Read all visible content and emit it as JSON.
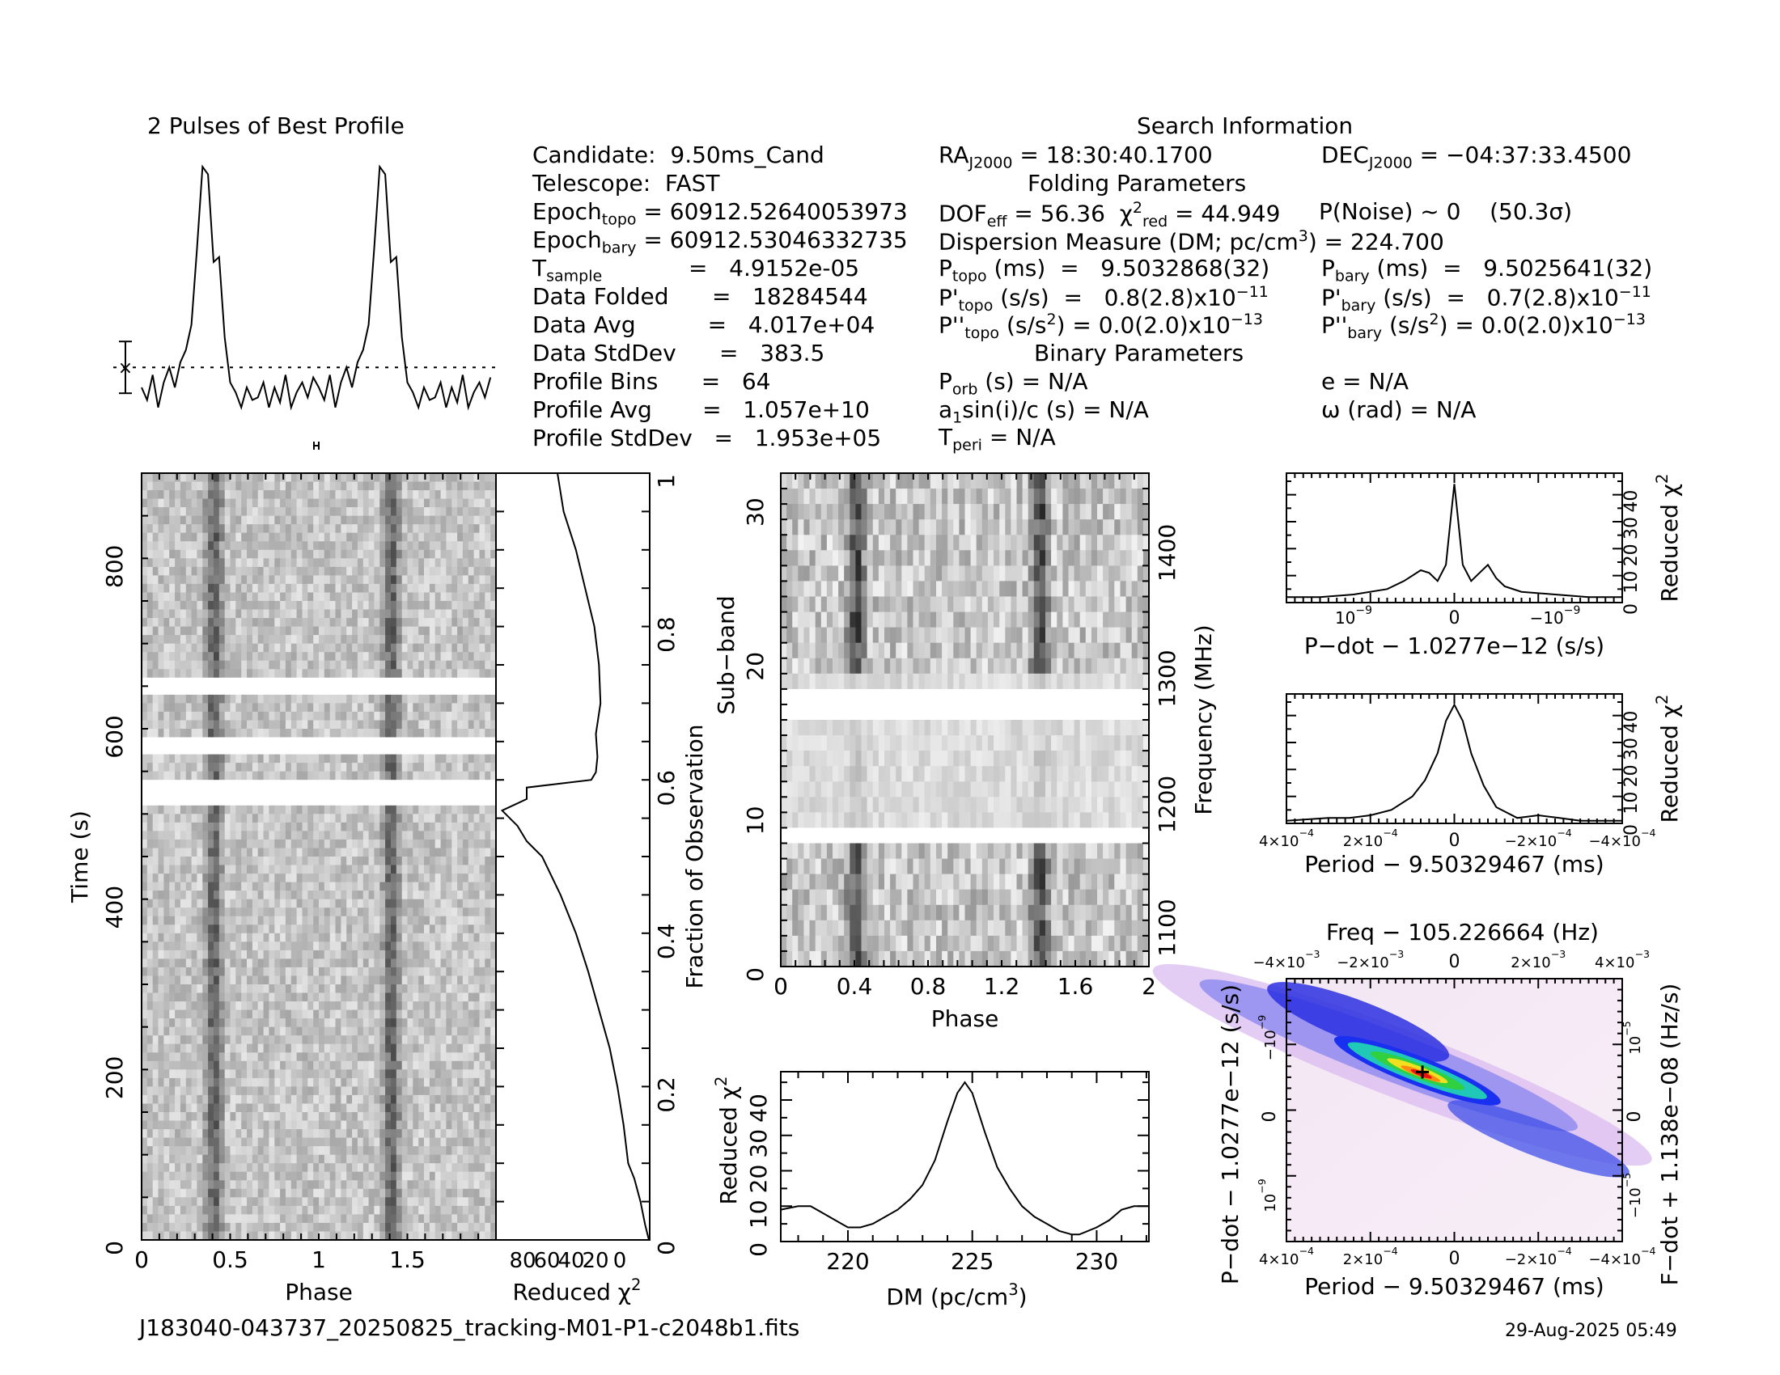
{
  "profile_title": "2 Pulses of Best Profile",
  "search_title": "Search Information",
  "footer": {
    "filename": "J183040-043737_20250825_tracking-M01-P1-c2048b1.fits",
    "date": "29-Aug-2025 05:49"
  },
  "info": {
    "col1": [
      [
        "Candidate:  9.50ms_Cand"
      ],
      [
        "Telescope:  FAST"
      ],
      [
        "Epoch",
        "topo",
        " = 60912.52640053973"
      ],
      [
        "Epoch",
        "bary",
        " = 60912.53046332735"
      ],
      [
        "T",
        "sample",
        "            =   4.9152e-05"
      ],
      [
        "Data Folded      =   18284544"
      ],
      [
        "Data Avg          =   4.017e+04"
      ],
      [
        "Data StdDev      =   383.5"
      ],
      [
        "Profile Bins      =   64"
      ],
      [
        "Profile Avg       =   1.057e+10"
      ],
      [
        "Profile StdDev   =   1.953e+05"
      ]
    ],
    "ra": "RA",
    "ra_sub": "J2000",
    "ra_val": " = 18:30:40.1700",
    "dec": "DEC",
    "dec_sub": "J2000",
    "dec_val": " = −04:37:33.4500",
    "folding_title": "Folding Parameters",
    "dof": "DOF",
    "dof_sub": "eff",
    "dof_val": " = 56.36",
    "chi": "  χ",
    "chi_sup": "2",
    "chi_sub": "red",
    "chi_val": " = 44.949",
    "pnoise": "P(Noise) ~ 0    (50.3σ)",
    "dm_line": "Dispersion Measure (DM; pc/cm",
    "dm_sup": "3",
    "dm_val": ") = 224.700",
    "ptopo": "P",
    "ptopo_sub": "topo",
    "ptopo_val": " (ms)  =   9.5032868(32)",
    "pbary": "P",
    "pbary_sub": "bary",
    "pbary_val": " (ms)  =   9.5025641(32)",
    "pdtopo": "P'",
    "pdtopo_sub": "topo",
    "pdtopo_val": " (s/s)  =   0.8(2.8)x10",
    "pdtopo_exp": "−11",
    "pdbary": "P'",
    "pdbary_sub": "bary",
    "pdbary_val": " (s/s)  =   0.7(2.8)x10",
    "pdbary_exp": "−11",
    "pddtopo": "P''",
    "pddtopo_sub": "topo",
    "pddtopo_val": " (s/s",
    "pddtopo_sup": "2",
    "pddtopo_val2": ") = 0.0(2.0)x10",
    "pddtopo_exp": "−13",
    "pddbary": "P''",
    "pddbary_sub": "bary",
    "pddbary_val": " (s/s",
    "pddbary_sup": "2",
    "pddbary_val2": ") = 0.0(2.0)x10",
    "pddbary_exp": "−13",
    "binary_title": "Binary Parameters",
    "porb": "P",
    "porb_sub": "orb",
    "porb_val": " (s) = N/A",
    "asini": "a",
    "asini_sub": "1",
    "asini_val": "sin(i)/c (s) = N/A",
    "tperi": "T",
    "tperi_sub": "peri",
    "tperi_val": " = N/A",
    "ecc": "e = N/A",
    "omega": "ω (rad) = N/A"
  },
  "chart_data": [
    {
      "type": "line",
      "name": "profile",
      "title": "2 Pulses of Best Profile",
      "x": [
        0,
        0.03125,
        0.0625,
        0.09375,
        0.125,
        0.15625,
        0.1875,
        0.21875,
        0.25,
        0.28125,
        0.3125,
        0.34375,
        0.375,
        0.40625,
        0.4375,
        0.46875,
        0.5,
        0.53125,
        0.5625,
        0.59375,
        0.625,
        0.65625,
        0.6875,
        0.71875,
        0.75,
        0.78125,
        0.8125,
        0.84375,
        0.875,
        0.90625,
        0.9375,
        0.96875,
        1.0,
        1.03125,
        1.0625,
        1.09375,
        1.125,
        1.15625,
        1.1875,
        1.21875,
        1.25,
        1.28125,
        1.3125,
        1.34375,
        1.375,
        1.40625,
        1.4375,
        1.46875,
        1.5,
        1.53125,
        1.5625,
        1.59375,
        1.625,
        1.65625,
        1.6875,
        1.71875,
        1.75,
        1.78125,
        1.8125,
        1.84375,
        1.875,
        1.90625,
        1.9375,
        1.96875
      ],
      "values": [
        0.1,
        0.05,
        0.15,
        0.02,
        0.12,
        0.18,
        0.1,
        0.2,
        0.25,
        0.35,
        0.65,
        0.98,
        0.95,
        0.6,
        0.62,
        0.3,
        0.12,
        0.08,
        0.02,
        0.1,
        0.05,
        0.06,
        0.12,
        0.02,
        0.1,
        0.04,
        0.15,
        0.02,
        0.08,
        0.12,
        0.06,
        0.14,
        0.1,
        0.05,
        0.15,
        0.02,
        0.12,
        0.18,
        0.1,
        0.2,
        0.25,
        0.35,
        0.65,
        0.98,
        0.95,
        0.6,
        0.62,
        0.3,
        0.12,
        0.08,
        0.02,
        0.1,
        0.05,
        0.06,
        0.12,
        0.02,
        0.1,
        0.04,
        0.15,
        0.02,
        0.08,
        0.12,
        0.06,
        0.14
      ]
    },
    {
      "type": "heatmap",
      "name": "time-phase",
      "xlabel": "Phase",
      "ylabel": "Time (s)",
      "xlim": [
        0,
        2
      ],
      "ylim": [
        0,
        900
      ],
      "x_ticks": [
        "0",
        "0.5",
        "1",
        "1.5"
      ],
      "y_ticks": [
        "0",
        "200",
        "400",
        "600",
        "800"
      ],
      "pulse_phases": [
        0.41,
        1.41
      ],
      "blank_time_ranges": [
        [
          510,
          540
        ],
        [
          645,
          660
        ],
        [
          575,
          585
        ]
      ]
    },
    {
      "type": "line",
      "name": "time-chi2",
      "xlabel": "Reduced χ",
      "xlabel_sup": "2",
      "ylabel": "Fraction of Observation",
      "x_ticks": [
        "80",
        "60",
        "40",
        "20",
        "0"
      ],
      "y_ticks": [
        "0",
        "0.2",
        "0.4",
        "0.6",
        "0.8",
        "1"
      ],
      "xlim": [
        100,
        0
      ],
      "ylim": [
        0,
        1
      ],
      "frac": [
        0.0,
        0.02,
        0.05,
        0.08,
        0.1,
        0.15,
        0.2,
        0.25,
        0.3,
        0.35,
        0.4,
        0.45,
        0.5,
        0.52,
        0.54,
        0.56,
        0.575,
        0.59,
        0.6,
        0.61,
        0.63,
        0.66,
        0.7,
        0.75,
        0.8,
        0.85,
        0.9,
        0.95,
        1.0
      ],
      "chi2": [
        0.5,
        3,
        6,
        10,
        14,
        17,
        21,
        26,
        33,
        40,
        48,
        58,
        70,
        80,
        86,
        96,
        80,
        80,
        38,
        35,
        34,
        35,
        32,
        33,
        36,
        42,
        48,
        56,
        60
      ]
    },
    {
      "type": "heatmap",
      "name": "subband-phase",
      "xlabel": "Phase",
      "ylabel": "Sub−band",
      "ylabel_right": "Frequency (MHz)",
      "x_ticks": [
        "0",
        "0.4",
        "0.8",
        "1.2",
        "1.6",
        "2"
      ],
      "y_ticks": [
        "0",
        "10",
        "20",
        "30"
      ],
      "y2_ticks": [
        "1100",
        "1200",
        "1300",
        "1400"
      ],
      "xlim": [
        0,
        2
      ],
      "ylim": [
        0,
        32
      ],
      "pulse_phases": [
        0.41,
        1.41
      ],
      "blank_subbands": [
        8,
        16,
        17
      ]
    },
    {
      "type": "line",
      "name": "dm-chi2",
      "xlabel": "DM (pc/cm",
      "xlabel_sup": "3",
      "xlabel_end": ")",
      "ylabel": "Reduced χ",
      "ylabel_sup": "2",
      "x_ticks": [
        "220",
        "225",
        "230"
      ],
      "y_ticks": [
        "0",
        "10",
        "20",
        "30",
        "40"
      ],
      "xlim": [
        217.3,
        232.1
      ],
      "ylim": [
        0,
        48
      ],
      "x": [
        217.3,
        218,
        218.5,
        219,
        219.5,
        220,
        220.5,
        221,
        221.5,
        222,
        222.5,
        223,
        223.5,
        224,
        224.4,
        224.7,
        225,
        225.5,
        226,
        226.5,
        227,
        227.5,
        228,
        228.5,
        229,
        229.3,
        230,
        230.5,
        231,
        231.5,
        232.1
      ],
      "values": [
        9,
        10,
        10,
        8,
        6,
        4,
        4,
        5,
        7,
        9,
        12,
        16,
        23,
        34,
        42,
        45,
        42,
        31,
        21,
        15,
        10,
        7,
        5,
        3,
        2,
        2,
        4,
        6,
        9,
        10,
        10
      ]
    },
    {
      "type": "line",
      "name": "pdot-chi2",
      "xlabel": "P−dot − 1.0277e−12 (s/s)",
      "ylabel": "Reduced χ",
      "ylabel_sup": "2",
      "x_ticks": [
        "10",
        "0",
        "−10"
      ],
      "x_tick_exp": "−9",
      "y_ticks": [
        "0",
        "10",
        "20",
        "30",
        "40"
      ],
      "xlim": [
        -1,
        1
      ],
      "ylim": [
        0,
        48
      ],
      "x": [
        -1,
        -0.8,
        -0.6,
        -0.4,
        -0.3,
        -0.2,
        -0.15,
        -0.1,
        -0.05,
        -0.02,
        0,
        0.02,
        0.05,
        0.1,
        0.15,
        0.2,
        0.25,
        0.3,
        0.4,
        0.6,
        0.8,
        1
      ],
      "values": [
        2,
        2,
        3,
        5,
        8,
        12,
        11,
        8,
        14,
        32,
        44,
        32,
        14,
        8,
        11,
        14,
        9,
        6,
        4,
        3,
        2,
        2
      ]
    },
    {
      "type": "line",
      "name": "period-chi2",
      "xlabel": "Period − 9.50329467 (ms)",
      "ylabel": "Reduced χ",
      "ylabel_sup": "2",
      "x_ticks": [
        "4×10",
        "2×10",
        "0",
        "−2×10",
        "−4×10"
      ],
      "x_tick_exp": "−4",
      "y_ticks": [
        "0",
        "10",
        "20",
        "30",
        "40"
      ],
      "xlim": [
        0.0004,
        -0.0004
      ],
      "ylim": [
        0,
        48
      ],
      "x": [
        0.0004,
        0.0003,
        0.00025,
        0.0002,
        0.00015,
        0.0001,
        7e-05,
        4e-05,
        2e-05,
        0,
        -2e-05,
        -4e-05,
        -7e-05,
        -0.0001,
        -0.00015,
        -0.0002,
        -0.00025,
        -0.0003,
        -0.0004
      ],
      "values": [
        1,
        2,
        2,
        3,
        5,
        10,
        16,
        26,
        38,
        44,
        38,
        26,
        14,
        6,
        2,
        3,
        2,
        1,
        1
      ]
    },
    {
      "type": "heatmap",
      "name": "period-pdot",
      "title": "Freq − 105.226664 (Hz)",
      "xlabel": "Period − 9.50329467 (ms)",
      "ylabel": "P−dot − 1.0277e−12 (s/s)",
      "ylabel_right": "F−dot + 1.138e−08 (Hz/s)",
      "x_ticks": [
        "4×10",
        "2×10",
        "0",
        "−2×10",
        "−4×10"
      ],
      "x_tick_exp": "−4",
      "top_ticks": [
        "−4×10",
        "−2×10",
        "0",
        "2×10",
        "4×10"
      ],
      "top_tick_exp": "−3",
      "y_ticks": [
        "10",
        "0",
        "−10"
      ],
      "y_tick_exp": "−9",
      "y2_ticks": [
        "−10",
        "0",
        "10"
      ],
      "y2_tick_exp": "−5",
      "peak": [
        0,
        0
      ]
    }
  ]
}
